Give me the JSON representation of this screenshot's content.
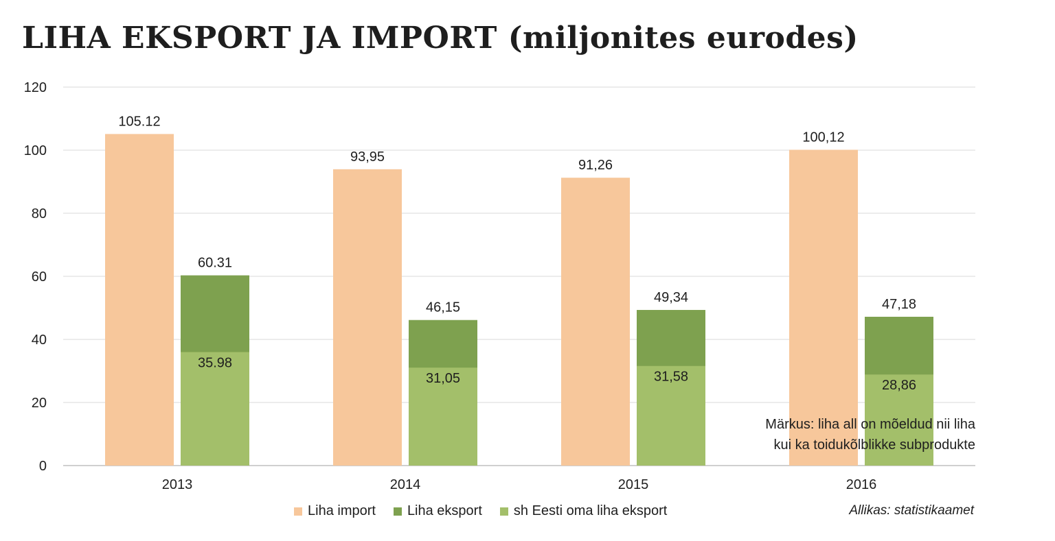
{
  "title": "LIHA EKSPORT JA IMPORT (miljonites eurodes)",
  "note": {
    "line1": "Märkus: liha all on mõeldud nii liha",
    "line2": "kui ka toidukõlblikke subprodukte"
  },
  "source": "Allikas: statistikaamet",
  "colors": {
    "import": "#f7c79b",
    "export": "#7ea14f",
    "eesti": "#a3bf6a",
    "grid": "#d9d9d9"
  },
  "legend": [
    {
      "label": "Liha import",
      "color": "#f7c79b"
    },
    {
      "label": "Liha eksport",
      "color": "#7ea14f"
    },
    {
      "label": "sh Eesti oma liha eksport",
      "color": "#a3bf6a"
    }
  ],
  "chart_data": {
    "type": "bar",
    "title": "LIHA EKSPORT JA IMPORT (miljonites eurodes)",
    "categories": [
      "2013",
      "2014",
      "2015",
      "2016"
    ],
    "ylim": [
      0,
      120
    ],
    "yticks": [
      "0",
      "20",
      "40",
      "60",
      "80",
      "100",
      "120"
    ],
    "grid": true,
    "legend_position": "bottom",
    "series": [
      {
        "name": "Liha import",
        "values": [
          105.12,
          93.95,
          91.26,
          100.12
        ],
        "labels": [
          "105.12",
          "93,95",
          "91,26",
          "100,12"
        ]
      },
      {
        "name": "Liha eksport",
        "values": [
          60.31,
          46.15,
          49.34,
          47.18
        ],
        "labels": [
          "60.31",
          "46,15",
          "49,34",
          "47,18"
        ]
      },
      {
        "name": "sh Eesti oma liha eksport",
        "values": [
          35.98,
          31.05,
          31.58,
          28.86
        ],
        "labels": [
          "35.98",
          "31,05",
          "31,58",
          "28,86"
        ]
      }
    ]
  }
}
